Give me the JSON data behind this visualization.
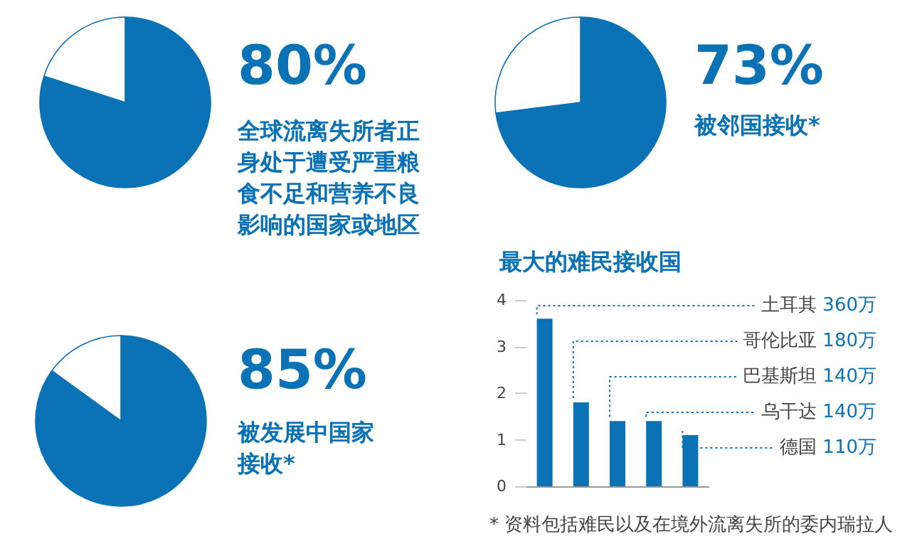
{
  "chart_data": [
    {
      "type": "pie",
      "title": "80%",
      "subtitle": "全球流离失所者正身处于遭受严重粮食不足和营养不良影响的国家或地区",
      "categories": [
        null,
        null
      ],
      "values": [
        80,
        20
      ],
      "colors": [
        "#0a72b5",
        "#ffffff"
      ]
    },
    {
      "type": "pie",
      "title": "73%",
      "subtitle": "被邻国接收*",
      "categories": [
        null,
        null
      ],
      "values": [
        73,
        27
      ],
      "colors": [
        "#0a72b5",
        "#ffffff"
      ]
    },
    {
      "type": "pie",
      "title": "85%",
      "subtitle": "被发展中国家接收*",
      "categories": [
        null,
        null
      ],
      "values": [
        85,
        15
      ],
      "colors": [
        "#0a72b5",
        "#ffffff"
      ]
    },
    {
      "type": "bar",
      "title": "最大的难民接收国",
      "categories": [
        null,
        null,
        null,
        null,
        null
      ],
      "series": [
        {
          "color": "#0a72b5",
          "values": [
            3.6,
            1.8,
            1.4,
            1.4,
            1.1
          ]
        }
      ],
      "ylim": [
        0,
        4
      ],
      "yticks": [
        0,
        1,
        2,
        3,
        4
      ],
      "grid": false,
      "tick_labels": "y",
      "annotations": [
        "土耳其 360万",
        "哥伦比亚 180万",
        "巴基斯坦 140万",
        "乌干达 140万",
        "德国 110万",
        "* 资料包括难民以及在境外流离失所的委内瑞拉人"
      ]
    }
  ]
}
